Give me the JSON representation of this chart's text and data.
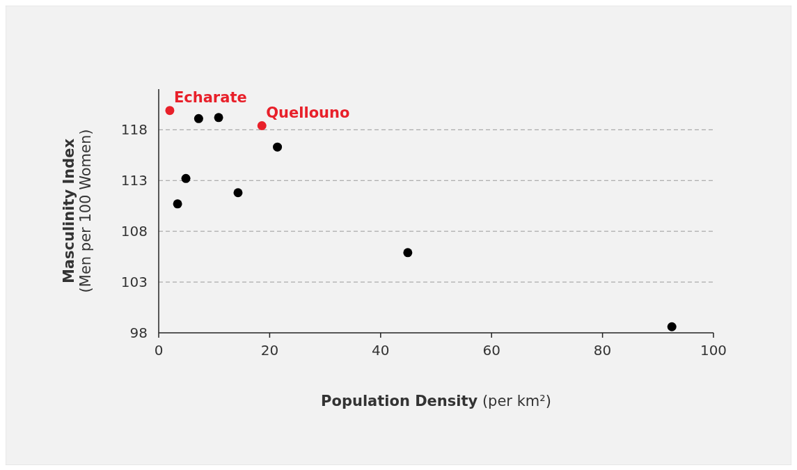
{
  "chart_data": {
    "type": "scatter",
    "xlabel": "Population Density (per km²)",
    "ylabel": "Masculinity Index\n(Men per 100 Women)",
    "xlim": [
      0,
      100
    ],
    "xticks": [
      0,
      20,
      40,
      60,
      80,
      100
    ],
    "ylim": [
      98,
      122
    ],
    "yticks": [
      98,
      103,
      108,
      113,
      118
    ],
    "grid": "y",
    "marker": "circle",
    "series": [
      {
        "color": "#000000",
        "x": [
          7.2,
          10.8,
          21.4,
          4.9,
          3.4,
          14.3,
          44.9,
          92.5
        ],
        "values": [
          119.1,
          119.2,
          116.3,
          113.2,
          110.7,
          111.8,
          105.9,
          98.6
        ]
      },
      {
        "color": "#e8202a",
        "x": [
          2.0,
          18.6
        ],
        "values": [
          119.9,
          118.4
        ]
      }
    ],
    "annotations": [
      {
        "text": "Echarate",
        "x": 2.0,
        "y": 119.9
      },
      {
        "text": "Quellouno",
        "x": 18.6,
        "y": 118.4
      }
    ]
  }
}
